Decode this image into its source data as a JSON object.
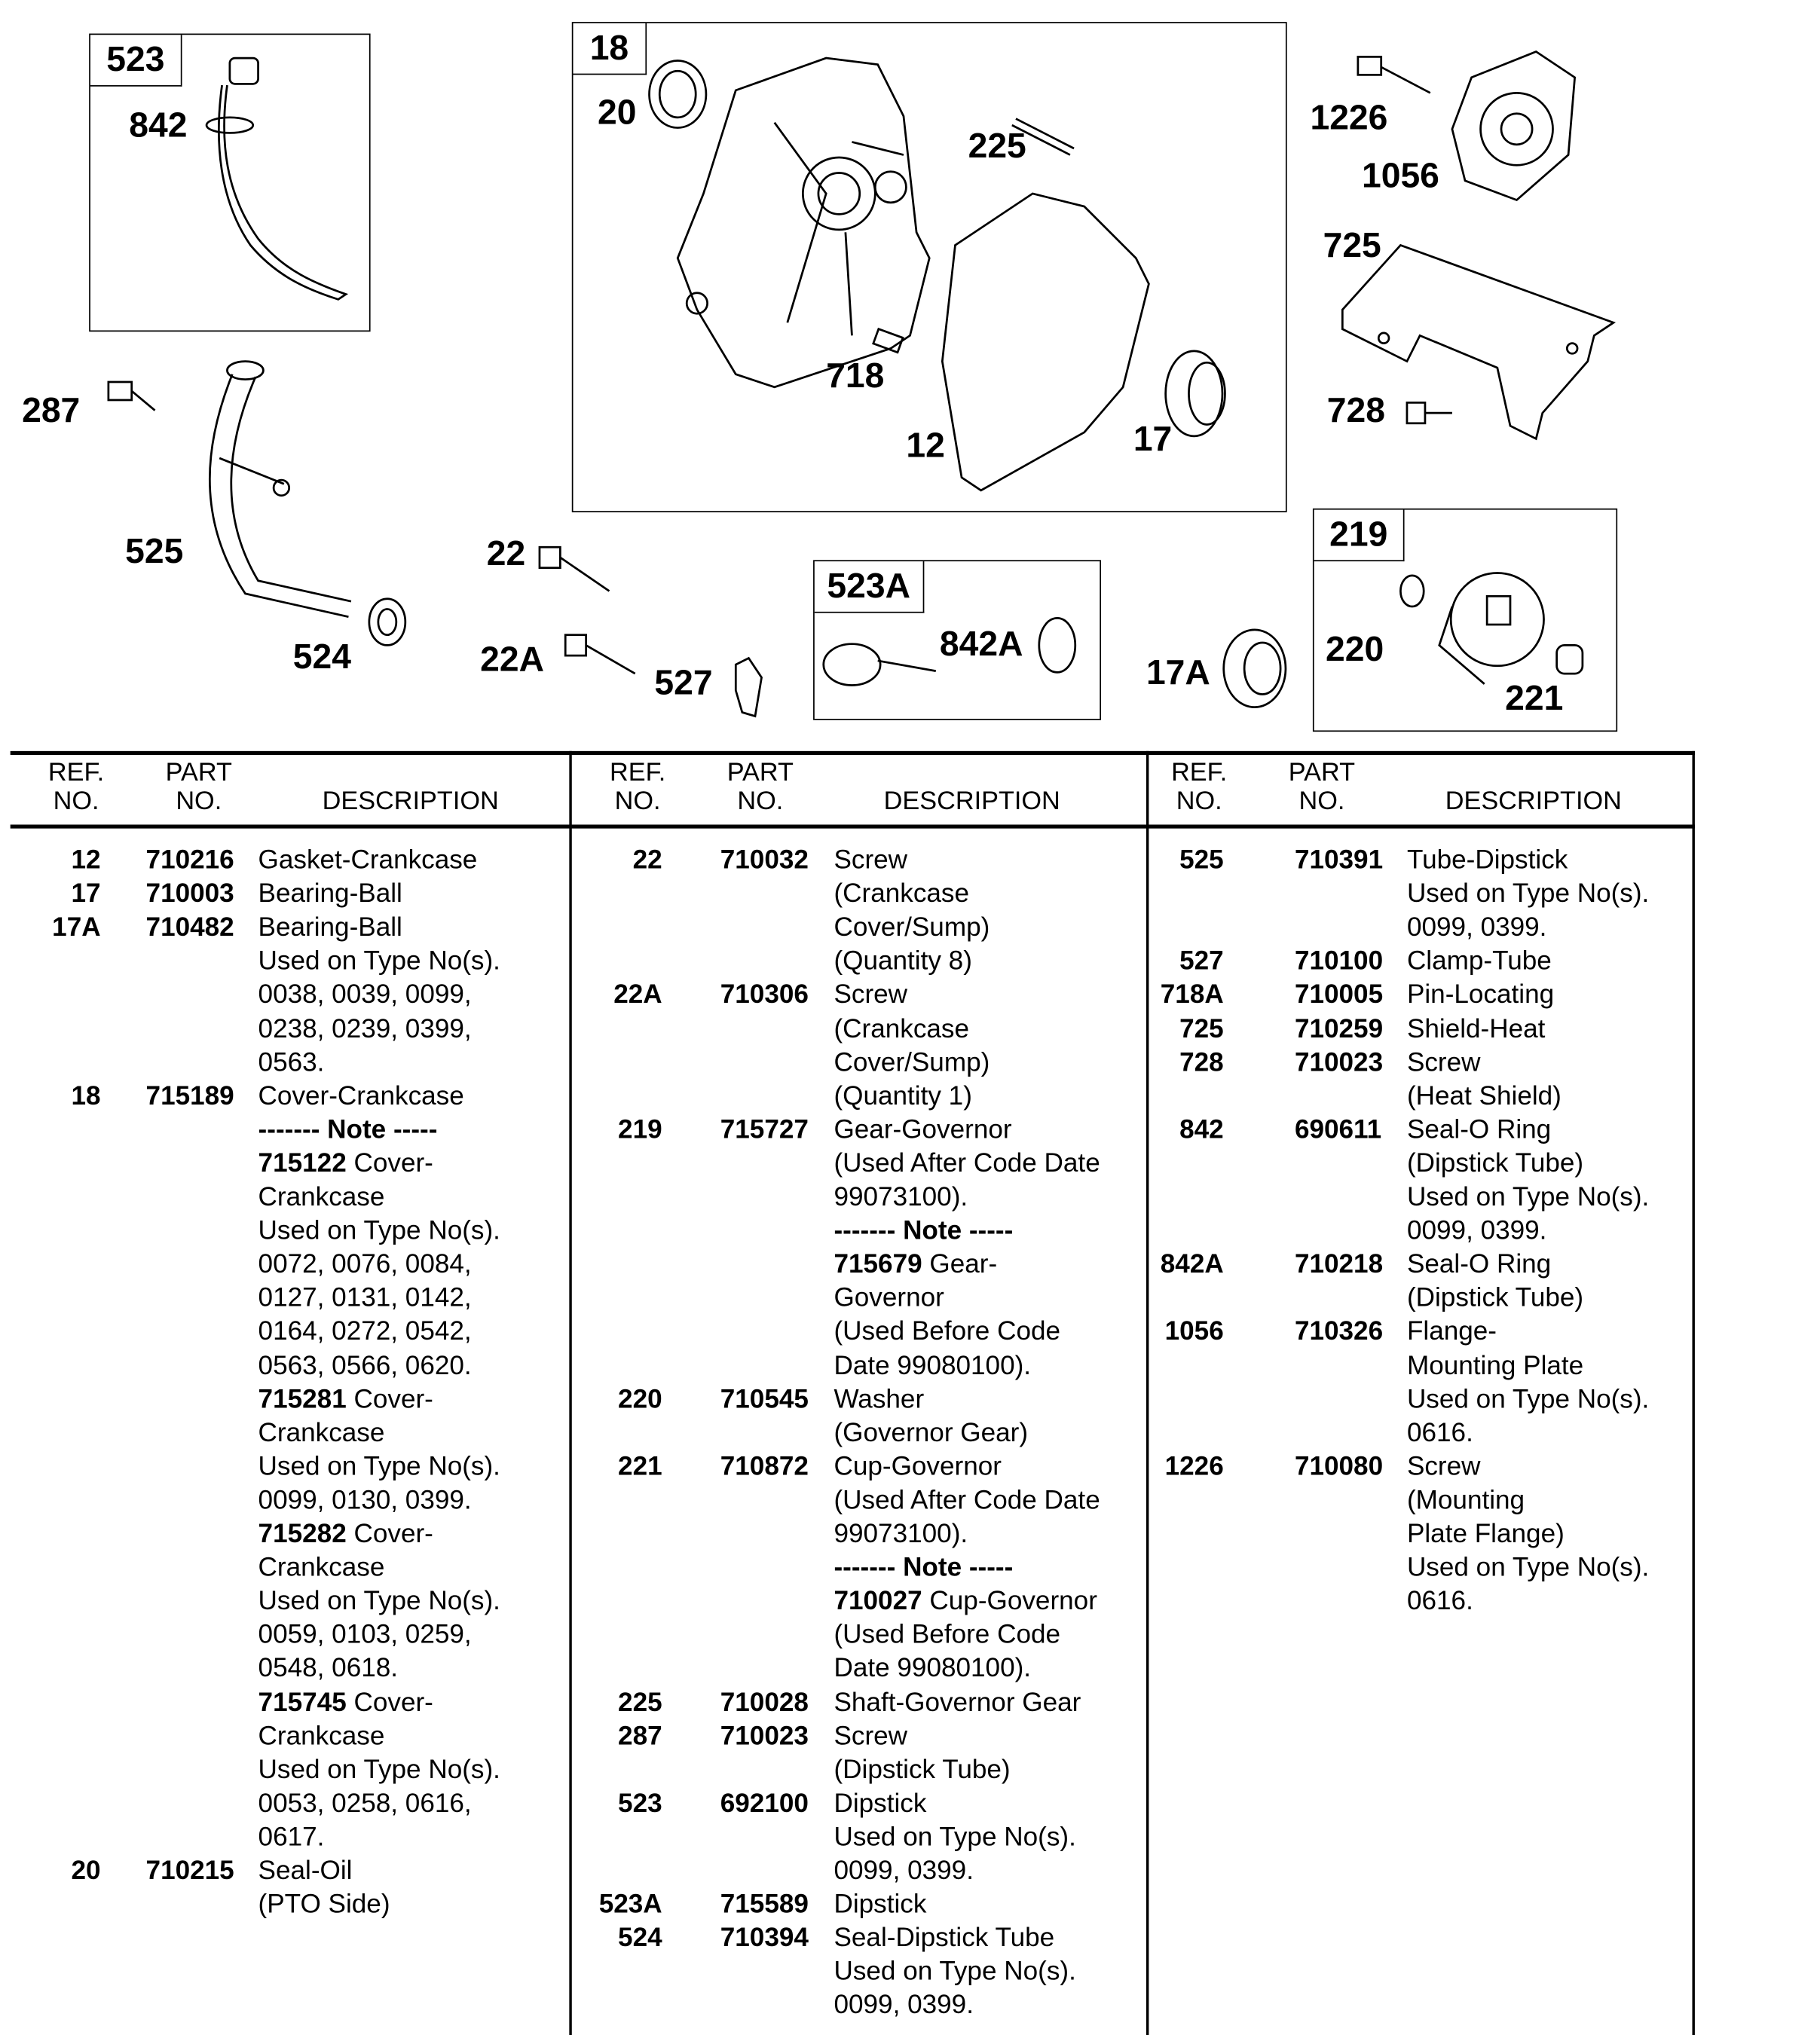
{
  "diagram": {
    "boxes": {
      "b523": "523",
      "b18": "18",
      "b523A": "523A",
      "b219": "219"
    },
    "callouts": {
      "c842": "842",
      "c20": "20",
      "c225": "225",
      "c1226": "1226",
      "c1056": "1056",
      "c725": "725",
      "c287": "287",
      "c718": "718",
      "c12": "12",
      "c17": "17",
      "c728": "728",
      "c525": "525",
      "c22": "22",
      "c524": "524",
      "c22A": "22A",
      "c527": "527",
      "c842A": "842A",
      "c17A": "17A",
      "c220": "220",
      "c221": "221"
    }
  },
  "table": {
    "headers": {
      "ref1": "REF.",
      "ref2": "NO.",
      "part1": "PART",
      "part2": "NO.",
      "desc": "DESCRIPTION"
    },
    "columns": [
      [
        {
          "r": "12",
          "p": "710216",
          "t": "Gasket-Crankcase"
        },
        {
          "r": "17",
          "p": "710003",
          "t": "Bearing-Ball"
        },
        {
          "r": "17A",
          "p": "710482",
          "t": "Bearing-Ball"
        },
        {
          "t": "Used on Type No(s)."
        },
        {
          "t": "0038, 0039, 0099,"
        },
        {
          "t": "0238, 0239, 0399,"
        },
        {
          "t": "0563."
        },
        {
          "r": "18",
          "p": "715189",
          "t": "Cover-Crankcase"
        },
        {
          "b": "------- Note -----"
        },
        {
          "b": "715122",
          "t": " Cover-"
        },
        {
          "t": "Crankcase"
        },
        {
          "t": "Used on Type No(s)."
        },
        {
          "t": "0072, 0076, 0084,"
        },
        {
          "t": "0127, 0131, 0142,"
        },
        {
          "t": "0164, 0272, 0542,"
        },
        {
          "t": "0563, 0566, 0620."
        },
        {
          "b": "715281",
          "t": " Cover-"
        },
        {
          "t": "Crankcase"
        },
        {
          "t": "Used on Type No(s)."
        },
        {
          "t": "0099, 0130, 0399."
        },
        {
          "b": "715282",
          "t": " Cover-"
        },
        {
          "t": "Crankcase"
        },
        {
          "t": "Used on Type No(s)."
        },
        {
          "t": "0059, 0103, 0259,"
        },
        {
          "t": "0548, 0618."
        },
        {
          "b": "715745",
          "t": " Cover-"
        },
        {
          "t": "Crankcase"
        },
        {
          "t": "Used on Type No(s)."
        },
        {
          "t": "0053, 0258, 0616,"
        },
        {
          "t": "0617."
        },
        {
          "r": "20",
          "p": "710215",
          "t": "Seal-Oil"
        },
        {
          "t": "(PTO Side)"
        }
      ],
      [
        {
          "r": "22",
          "p": "710032",
          "t": "Screw"
        },
        {
          "t": "(Crankcase"
        },
        {
          "t": "Cover/Sump)"
        },
        {
          "t": "(Quantity 8)"
        },
        {
          "r": "22A",
          "p": "710306",
          "t": "Screw"
        },
        {
          "t": "(Crankcase"
        },
        {
          "t": "Cover/Sump)"
        },
        {
          "t": "(Quantity 1)"
        },
        {
          "r": "219",
          "p": "715727",
          "t": "Gear-Governor"
        },
        {
          "t": "(Used After Code Date"
        },
        {
          "t": "99073100)."
        },
        {
          "b": "------- Note -----"
        },
        {
          "b": "715679",
          "t": " Gear-"
        },
        {
          "t": "Governor"
        },
        {
          "t": "(Used Before Code"
        },
        {
          "t": "Date 99080100)."
        },
        {
          "r": "220",
          "p": "710545",
          "t": "Washer"
        },
        {
          "t": "(Governor Gear)"
        },
        {
          "r": "221",
          "p": "710872",
          "t": "Cup-Governor"
        },
        {
          "t": "(Used After Code Date"
        },
        {
          "t": "99073100)."
        },
        {
          "b": "------- Note -----"
        },
        {
          "b": "710027",
          "t": " Cup-Governor"
        },
        {
          "t": "(Used Before Code"
        },
        {
          "t": "Date 99080100)."
        },
        {
          "r": "225",
          "p": "710028",
          "t": "Shaft-Governor Gear"
        },
        {
          "r": "287",
          "p": "710023",
          "t": "Screw"
        },
        {
          "t": "(Dipstick Tube)"
        },
        {
          "r": "523",
          "p": "692100",
          "t": "Dipstick"
        },
        {
          "t": "Used on Type No(s)."
        },
        {
          "t": "0099, 0399."
        },
        {
          "r": "523A",
          "p": "715589",
          "t": "Dipstick"
        },
        {
          "r": "524",
          "p": "710394",
          "t": "Seal-Dipstick Tube"
        },
        {
          "t": "Used on Type No(s)."
        },
        {
          "t": "0099, 0399."
        }
      ],
      [
        {
          "r": "525",
          "p": "710391",
          "t": "Tube-Dipstick"
        },
        {
          "t": "Used on Type No(s)."
        },
        {
          "t": "0099, 0399."
        },
        {
          "r": "527",
          "p": "710100",
          "t": "Clamp-Tube"
        },
        {
          "r": "718A",
          "p": "710005",
          "t": "Pin-Locating"
        },
        {
          "r": "725",
          "p": "710259",
          "t": "Shield-Heat"
        },
        {
          "r": "728",
          "p": "710023",
          "t": "Screw"
        },
        {
          "t": "(Heat Shield)"
        },
        {
          "r": "842",
          "p": "690611",
          "t": "Seal-O Ring"
        },
        {
          "t": "(Dipstick Tube)"
        },
        {
          "t": "Used on Type No(s)."
        },
        {
          "t": "0099, 0399."
        },
        {
          "r": "842A",
          "p": "710218",
          "t": "Seal-O Ring"
        },
        {
          "t": "(Dipstick Tube)"
        },
        {
          "r": "1056",
          "p": "710326",
          "t": "Flange-"
        },
        {
          "t": "Mounting Plate"
        },
        {
          "t": "Used on Type No(s)."
        },
        {
          "t": "0616."
        },
        {
          "r": "1226",
          "p": "710080",
          "t": "Screw"
        },
        {
          "t": "(Mounting"
        },
        {
          "t": "Plate Flange)"
        },
        {
          "t": "Used on Type No(s)."
        },
        {
          "t": "0616."
        }
      ]
    ]
  }
}
